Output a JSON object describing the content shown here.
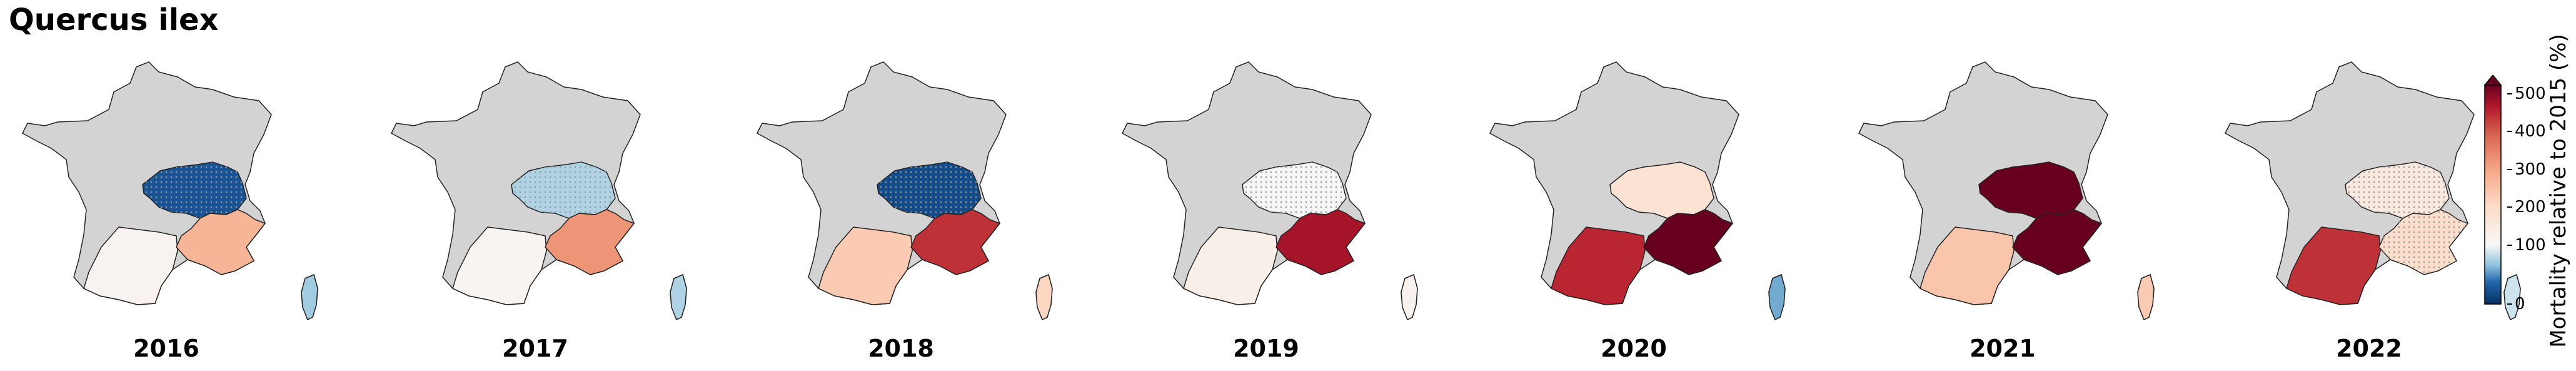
{
  "title": "Quercus ilex",
  "colorbar": {
    "label": "Mortality relative to 2015 (%)",
    "ticks": [
      0,
      100,
      200,
      300,
      400,
      500
    ],
    "extend": "max",
    "colormap": "RdBu_r"
  },
  "chart_data": {
    "type": "choropleth-map",
    "title": "Quercus ilex",
    "value_label": "Mortality relative to 2015 (%)",
    "scale": {
      "min": 0,
      "center": 100,
      "max": 500
    },
    "regions": [
      "southwest",
      "southeast-alps",
      "center-east",
      "corsica"
    ],
    "panels": [
      {
        "year": "2016",
        "values": {
          "southwest": 115,
          "southeast-alps": 270,
          "center-east": 20,
          "corsica": 70
        },
        "hatched": [
          "center-east"
        ]
      },
      {
        "year": "2017",
        "values": {
          "southwest": 110,
          "southeast-alps": 320,
          "center-east": 75,
          "corsica": 75
        },
        "hatched": [
          "center-east"
        ]
      },
      {
        "year": "2018",
        "values": {
          "southwest": 230,
          "southeast-alps": 430,
          "center-east": 15,
          "corsica": 210
        },
        "hatched": [
          "center-east"
        ]
      },
      {
        "year": "2019",
        "values": {
          "southwest": 130,
          "southeast-alps": 460,
          "center-east": 100,
          "corsica": 120
        },
        "hatched": [
          "center-east"
        ]
      },
      {
        "year": "2020",
        "values": {
          "southwest": 440,
          "southeast-alps": 540,
          "center-east": 175,
          "corsica": 55
        },
        "hatched": []
      },
      {
        "year": "2021",
        "values": {
          "southwest": 240,
          "southeast-alps": 560,
          "center-east": 560,
          "corsica": 230
        },
        "hatched": []
      },
      {
        "year": "2022",
        "values": {
          "southwest": 430,
          "southeast-alps": 190,
          "center-east": 150,
          "corsica": 85
        },
        "hatched": [
          "center-east",
          "southeast-alps"
        ]
      }
    ]
  }
}
